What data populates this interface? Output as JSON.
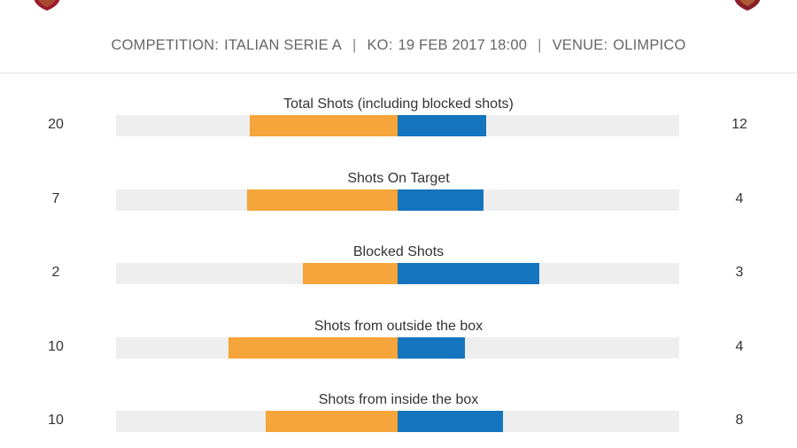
{
  "header": {
    "competition_key": "COMPETITION:",
    "competition_value": "ITALIAN SERIE A",
    "ko_key": "KO:",
    "ko_value": "19 FEB 2017 18:00",
    "venue_key": "VENUE:",
    "venue_value": "OLIMPICO",
    "separator": "|"
  },
  "colors": {
    "home_bar": "#f6a53a",
    "away_bar": "#1474be",
    "track": "#eeeeee",
    "home_crest": "#9b1b30",
    "away_crest": "#8a1f2b"
  },
  "icons": {
    "home_crest": "home-team-crest-icon",
    "away_crest": "away-team-crest-icon"
  },
  "stats": [
    {
      "title": "Total Shots (including blocked shots)",
      "home": "20",
      "away": "12",
      "home_share": 0.625,
      "away_share": 0.375
    },
    {
      "title": "Shots On Target",
      "home": "7",
      "away": "4",
      "home_share": 0.636,
      "away_share": 0.364
    },
    {
      "title": "Blocked Shots",
      "home": "2",
      "away": "3",
      "home_share": 0.4,
      "away_share": 0.6
    },
    {
      "title": "Shots from outside the box",
      "home": "10",
      "away": "4",
      "home_share": 0.714,
      "away_share": 0.286
    },
    {
      "title": "Shots from inside the box",
      "home": "10",
      "away": "8",
      "home_share": 0.556,
      "away_share": 0.444
    }
  ]
}
